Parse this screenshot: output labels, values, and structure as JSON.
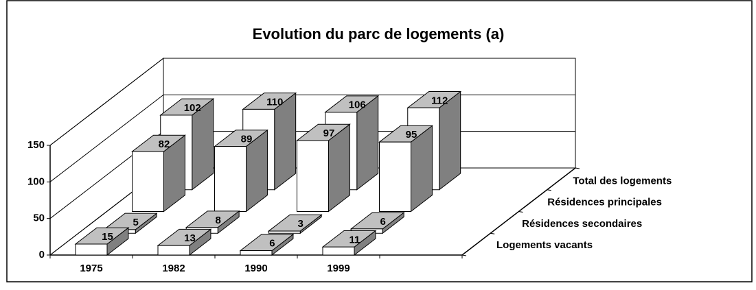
{
  "chart_data": {
    "type": "bar3d",
    "title": "Evolution du parc de logements (a)",
    "categories": [
      "1975",
      "1982",
      "1990",
      "1999"
    ],
    "series": [
      {
        "name": "Logements vacants",
        "color": "#ffffff",
        "values": [
          15,
          13,
          6,
          11
        ]
      },
      {
        "name": "Résidences secondaires",
        "color": "#ffffff",
        "values": [
          5,
          8,
          3,
          6
        ]
      },
      {
        "name": "Résidences principales",
        "color": "#ffffff",
        "values": [
          82,
          89,
          97,
          95
        ]
      },
      {
        "name": "Total des logements",
        "color": "#ffffff",
        "values": [
          102,
          110,
          106,
          112
        ]
      }
    ],
    "top_color": "#c0c0c0",
    "side_color": "#808080",
    "ylim": [
      0,
      150
    ],
    "yticks": [
      0,
      50,
      100,
      150
    ],
    "grid": true
  }
}
